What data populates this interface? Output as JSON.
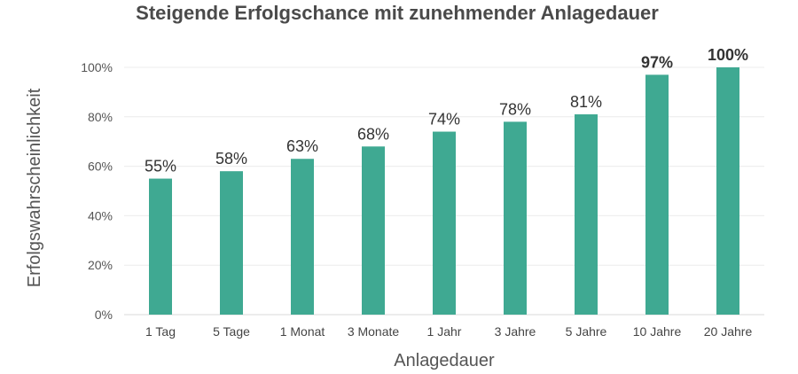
{
  "chart_data": {
    "type": "bar",
    "title": "Steigende Erfolgschance mit zunehmender Anlagedauer",
    "xlabel": "Anlagedauer",
    "ylabel": "Erfolgswahrscheinlichkeit",
    "categories": [
      "1 Tag",
      "5 Tage",
      "1 Monat",
      "3 Monate",
      "1 Jahr",
      "3 Jahre",
      "5 Jahre",
      "10 Jahre",
      "20 Jahre"
    ],
    "values": [
      55,
      58,
      63,
      68,
      74,
      78,
      81,
      97,
      100
    ],
    "data_labels": [
      "55%",
      "58%",
      "63%",
      "68%",
      "74%",
      "78%",
      "81%",
      "97%",
      "100%"
    ],
    "bold_labels": [
      false,
      false,
      false,
      false,
      false,
      false,
      false,
      true,
      true
    ],
    "yticks": [
      "0%",
      "20%",
      "40%",
      "60%",
      "80%",
      "100%"
    ],
    "ylim": [
      0,
      100
    ],
    "grid": true,
    "bar_color": "#3fa992"
  }
}
